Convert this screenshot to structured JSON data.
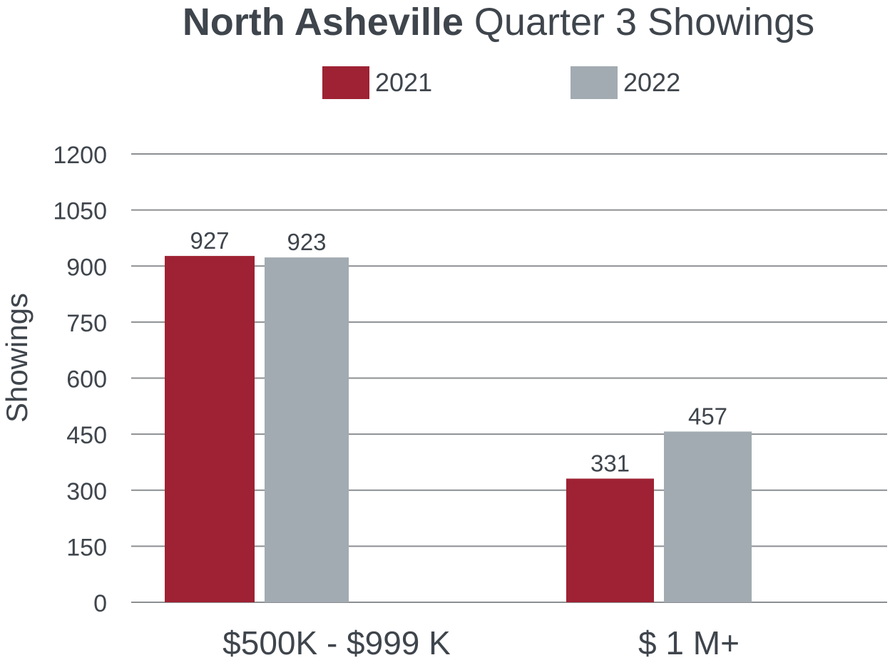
{
  "colors": {
    "series_2021": "#9e2233",
    "series_2022": "#a2abb1",
    "gridline": "#8c8f92",
    "text": "#3f454c"
  },
  "title": {
    "bold": "North Asheville",
    "regular": "Quarter 3 Showings"
  },
  "chart_data": {
    "type": "bar",
    "title": "North Asheville Quarter 3 Showings",
    "xlabel": "",
    "ylabel": "Showings",
    "categories": [
      "$500K - $999 K",
      "$ 1 M+"
    ],
    "series": [
      {
        "name": "2021",
        "values": [
          927,
          331
        ]
      },
      {
        "name": "2022",
        "values": [
          923,
          457
        ]
      }
    ],
    "ylim": [
      0,
      1200
    ],
    "yticks": [
      0,
      150,
      300,
      450,
      600,
      750,
      900,
      1050,
      1200
    ],
    "grid": true,
    "legend_position": "top-center",
    "data_labels": true
  }
}
